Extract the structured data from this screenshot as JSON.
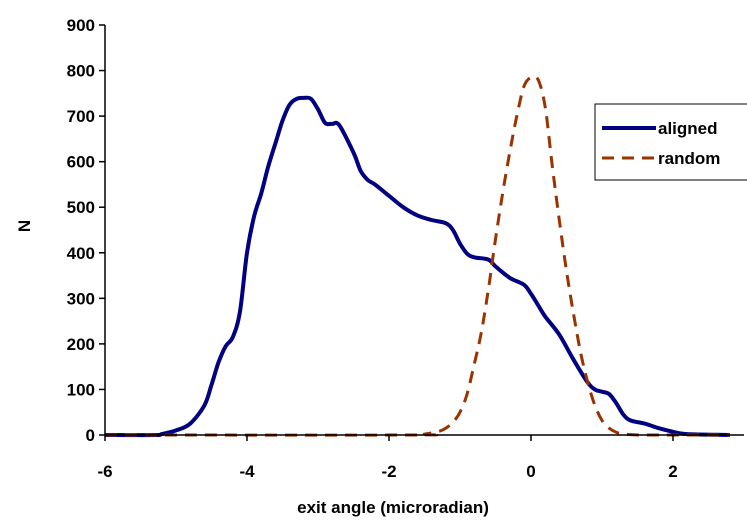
{
  "chart_data": {
    "type": "line",
    "title": "",
    "xlabel": "exit angle (microradian)",
    "ylabel": "N",
    "xlim": [
      -6,
      3
    ],
    "ylim": [
      0,
      900
    ],
    "xticks": [
      -6,
      -4,
      -2,
      0,
      2
    ],
    "yticks": [
      0,
      100,
      200,
      300,
      400,
      500,
      600,
      700,
      800,
      900
    ],
    "grid": false,
    "legend": "right",
    "series": [
      {
        "name": "aligned",
        "color": "#000080",
        "style": "solid",
        "x": [
          -6.0,
          -5.3,
          -5.2,
          -5.0,
          -4.8,
          -4.6,
          -4.5,
          -4.4,
          -4.3,
          -4.2,
          -4.1,
          -4.0,
          -3.9,
          -3.8,
          -3.7,
          -3.6,
          -3.5,
          -3.4,
          -3.3,
          -3.2,
          -3.1,
          -3.0,
          -2.9,
          -2.8,
          -2.7,
          -2.5,
          -2.4,
          -2.3,
          -2.2,
          -2.0,
          -1.8,
          -1.6,
          -1.4,
          -1.2,
          -1.1,
          -1.0,
          -0.9,
          -0.8,
          -0.6,
          -0.5,
          -0.3,
          -0.1,
          0.0,
          0.1,
          0.2,
          0.4,
          0.6,
          0.8,
          0.9,
          1.0,
          1.1,
          1.2,
          1.3,
          1.4,
          1.6,
          1.8,
          2.0,
          2.2,
          2.8
        ],
        "y": [
          0,
          0,
          2,
          10,
          25,
          65,
          110,
          160,
          195,
          215,
          270,
          400,
          480,
          530,
          590,
          640,
          690,
          725,
          738,
          740,
          738,
          715,
          685,
          683,
          680,
          620,
          580,
          560,
          550,
          525,
          500,
          482,
          472,
          465,
          450,
          420,
          398,
          390,
          385,
          370,
          345,
          330,
          310,
          285,
          260,
          220,
          165,
          115,
          100,
          95,
          90,
          70,
          45,
          32,
          25,
          15,
          7,
          2,
          0
        ]
      },
      {
        "name": "random",
        "color": "#993300",
        "style": "dashed",
        "x": [
          -6.0,
          -1.7,
          -1.5,
          -1.3,
          -1.2,
          -1.1,
          -1.0,
          -0.9,
          -0.8,
          -0.7,
          -0.6,
          -0.5,
          -0.4,
          -0.3,
          -0.2,
          -0.1,
          0.0,
          0.1,
          0.2,
          0.3,
          0.4,
          0.5,
          0.6,
          0.7,
          0.8,
          0.9,
          1.0,
          1.1,
          1.2,
          1.3,
          1.5,
          1.7,
          2.8
        ],
        "y": [
          0,
          0,
          2,
          8,
          15,
          28,
          50,
          90,
          155,
          225,
          320,
          430,
          530,
          620,
          700,
          765,
          785,
          780,
          720,
          590,
          470,
          360,
          265,
          180,
          115,
          65,
          32,
          15,
          6,
          2,
          0,
          0,
          0
        ]
      }
    ]
  }
}
